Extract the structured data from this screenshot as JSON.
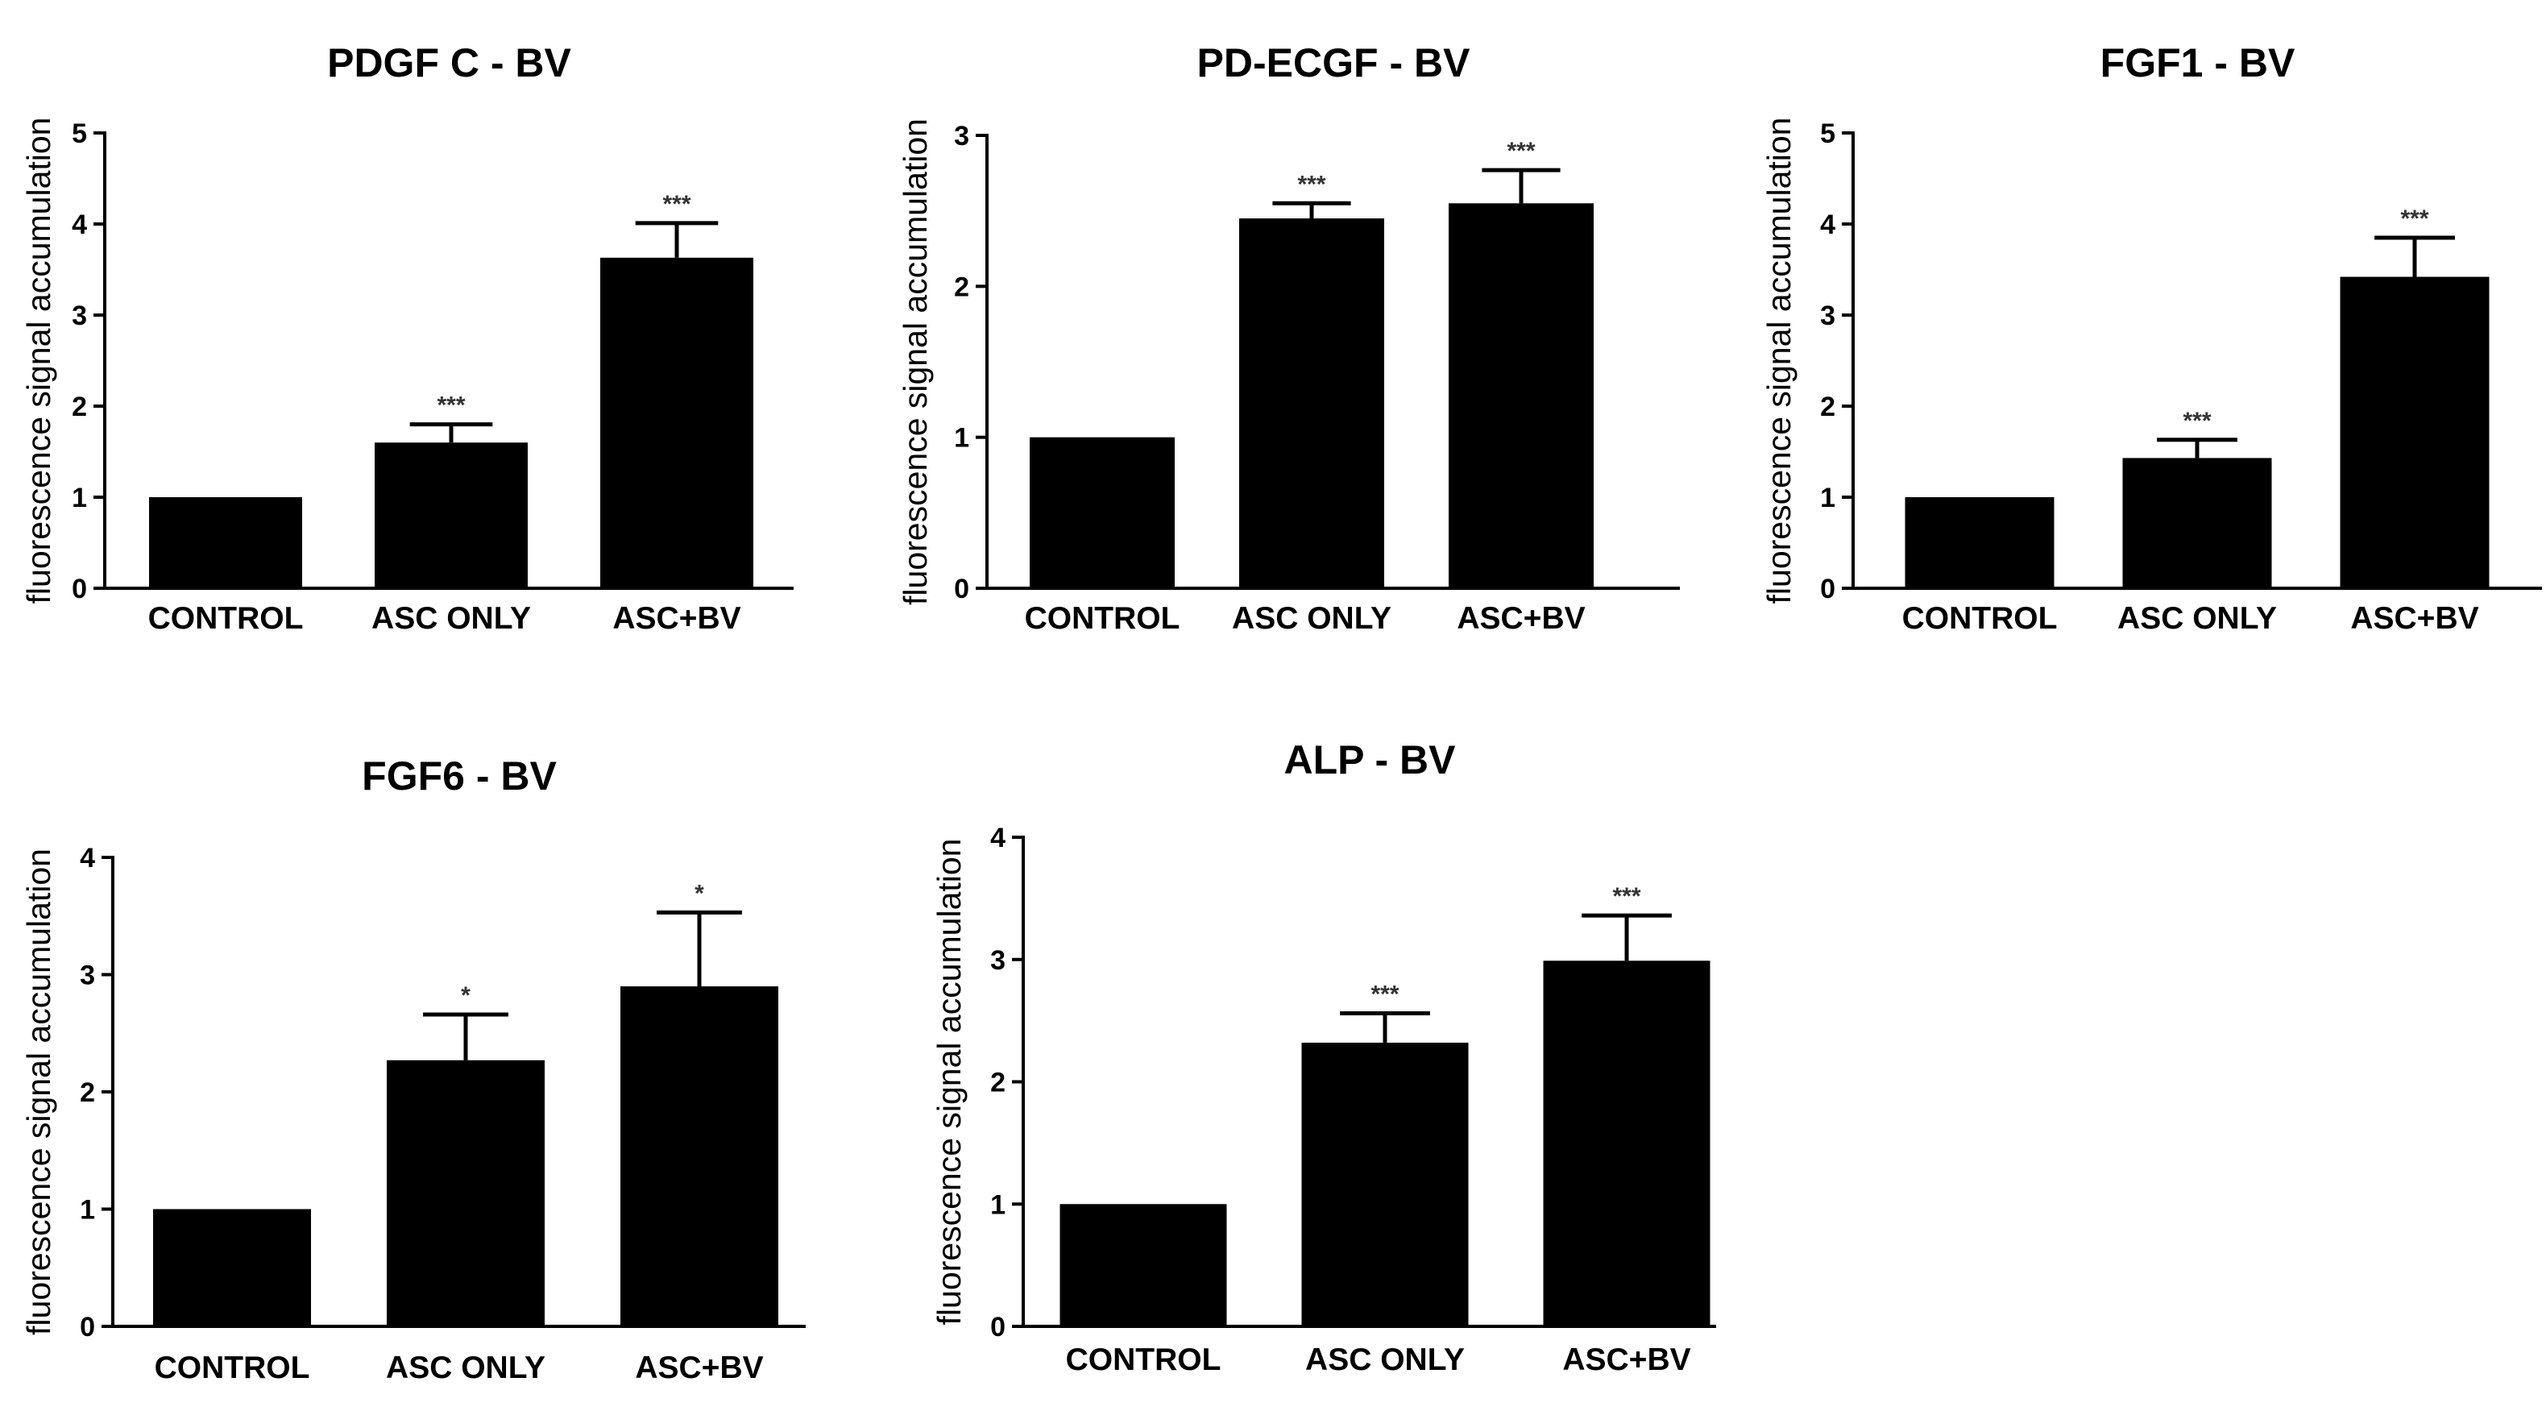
{
  "chart_data": [
    {
      "type": "bar",
      "title": "PDGF C - BV",
      "ylabel": "fluorescence signal accumulation",
      "xlabel": "",
      "categories": [
        "CONTROL",
        "ASC ONLY",
        "ASC+BV"
      ],
      "values": [
        1.0,
        1.6,
        3.63
      ],
      "errors": [
        0,
        0.2,
        0.38
      ],
      "significance": [
        "",
        "***",
        "***"
      ],
      "ylim": [
        0,
        5
      ],
      "yticks": [
        "0",
        "1",
        "2",
        "3",
        "4",
        "5"
      ]
    },
    {
      "type": "bar",
      "title": "PD-ECGF - BV",
      "ylabel": "fluorescence signal accumulation",
      "xlabel": "",
      "categories": [
        "CONTROL",
        "ASC ONLY",
        "ASC+BV"
      ],
      "values": [
        1.0,
        2.45,
        2.55
      ],
      "errors": [
        0,
        0.1,
        0.22
      ],
      "significance": [
        "",
        "***",
        "***"
      ],
      "ylim": [
        0,
        3
      ],
      "yticks": [
        "0",
        "1",
        "2",
        "3"
      ]
    },
    {
      "type": "bar",
      "title": "FGF1 - BV",
      "ylabel": "fluorescence signal accumulation",
      "xlabel": "",
      "categories": [
        "CONTROL",
        "ASC ONLY",
        "ASC+BV"
      ],
      "values": [
        1.0,
        1.43,
        3.42
      ],
      "errors": [
        0,
        0.2,
        0.43
      ],
      "significance": [
        "",
        "***",
        "***"
      ],
      "ylim": [
        0,
        5
      ],
      "yticks": [
        "0",
        "1",
        "2",
        "3",
        "4",
        "5"
      ]
    },
    {
      "type": "bar",
      "title": "FGF6 - BV",
      "ylabel": "fluorescence signal accumulation",
      "xlabel": "",
      "categories": [
        "CONTROL",
        "ASC ONLY",
        "ASC+BV"
      ],
      "values": [
        1.0,
        2.27,
        2.9
      ],
      "errors": [
        0,
        0.39,
        0.63
      ],
      "significance": [
        "",
        "*",
        "*"
      ],
      "ylim": [
        0,
        4
      ],
      "yticks": [
        "0",
        "1",
        "2",
        "3",
        "4"
      ]
    },
    {
      "type": "bar",
      "title": "ALP - BV",
      "ylabel": "fluorescence signal accumulation",
      "xlabel": "",
      "categories": [
        "CONTROL",
        "ASC ONLY",
        "ASC+BV"
      ],
      "values": [
        1.0,
        2.32,
        2.99
      ],
      "errors": [
        0,
        0.24,
        0.37
      ],
      "significance": [
        "",
        "***",
        "***"
      ],
      "ylim": [
        0,
        4
      ],
      "yticks": [
        "0",
        "1",
        "2",
        "3",
        "4"
      ]
    }
  ]
}
